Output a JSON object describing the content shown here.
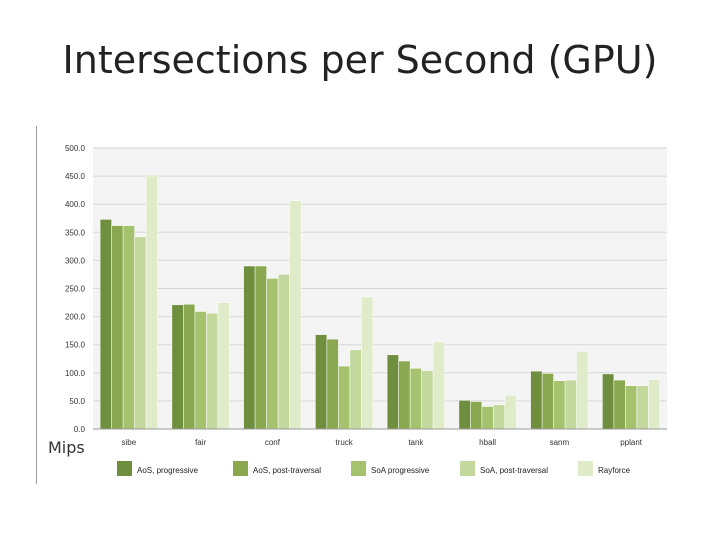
{
  "slide": {
    "title": "Intersections per Second (GPU)",
    "unit_label": "Mips"
  },
  "chart_data": {
    "type": "bar",
    "title": "",
    "xlabel": "",
    "ylabel": "Mips",
    "ylim": [
      0,
      500
    ],
    "yticks": [
      "0.0",
      "50.0",
      "100.0",
      "150.0",
      "200.0",
      "250.0",
      "300.0",
      "350.0",
      "400.0",
      "450.0",
      "500.0"
    ],
    "grid": true,
    "legend_position": "bottom",
    "categories": [
      "sibe",
      "fair",
      "conf",
      "truck",
      "tank",
      "hball",
      "sanm",
      "pplant"
    ],
    "series": [
      {
        "name": "AoS, progressive",
        "color": "#6f8f3e",
        "values": [
          373,
          221,
          290,
          168,
          132,
          51,
          103,
          98
        ]
      },
      {
        "name": "AoS, post-traversal",
        "color": "#8aa84f",
        "values": [
          362,
          222,
          290,
          160,
          121,
          49,
          99,
          87
        ]
      },
      {
        "name": "SoA progressive",
        "color": "#a5c36e",
        "values": [
          362,
          209,
          268,
          112,
          108,
          40,
          86,
          77
        ]
      },
      {
        "name": "SoA, post-traversal",
        "color": "#c3d89d",
        "values": [
          342,
          206,
          275,
          141,
          104,
          43,
          87,
          77
        ]
      },
      {
        "name": "Rayforce",
        "color": "#e0ebc9",
        "values": [
          452,
          225,
          406,
          235,
          155,
          60,
          138,
          88
        ]
      }
    ]
  }
}
